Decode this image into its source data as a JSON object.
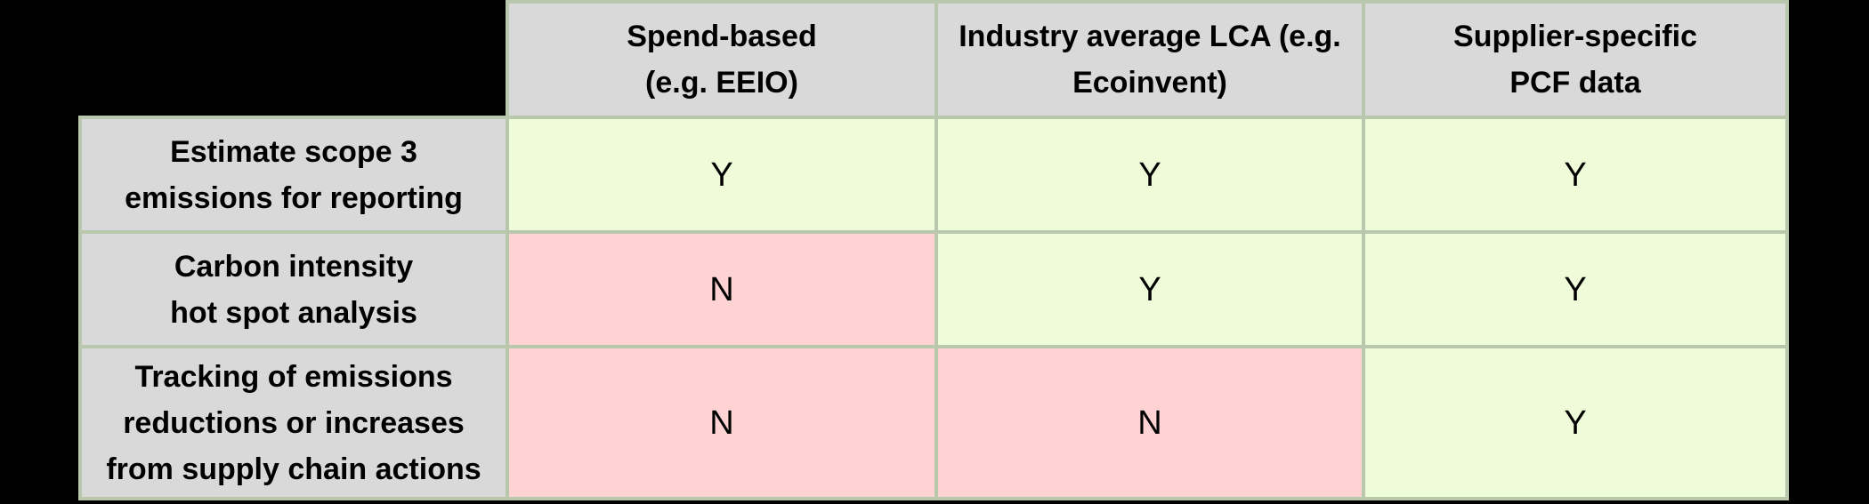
{
  "colors": {
    "page_bg": "#000000",
    "header_bg": "#d9d9d9",
    "yes_cell_bg": "#eefcd9",
    "no_cell_bg": "#ffd3d3",
    "grid_border": "#b9c8ad",
    "text": "#000000"
  },
  "chart_data": {
    "type": "table",
    "columns": [
      "Spend-based\n(e.g. EEIO)",
      "Industry average LCA (e.g.\nEcoinvent)",
      "Supplier-specific\nPCF data"
    ],
    "rows": [
      {
        "label": "Estimate scope 3\nemissions for reporting",
        "values": [
          "Y",
          "Y",
          "Y"
        ]
      },
      {
        "label": "Carbon intensity\nhot spot analysis",
        "values": [
          "N",
          "Y",
          "Y"
        ]
      },
      {
        "label": "Tracking of emissions\nreductions or increases\nfrom supply chain actions",
        "values": [
          "N",
          "N",
          "Y"
        ]
      }
    ]
  }
}
